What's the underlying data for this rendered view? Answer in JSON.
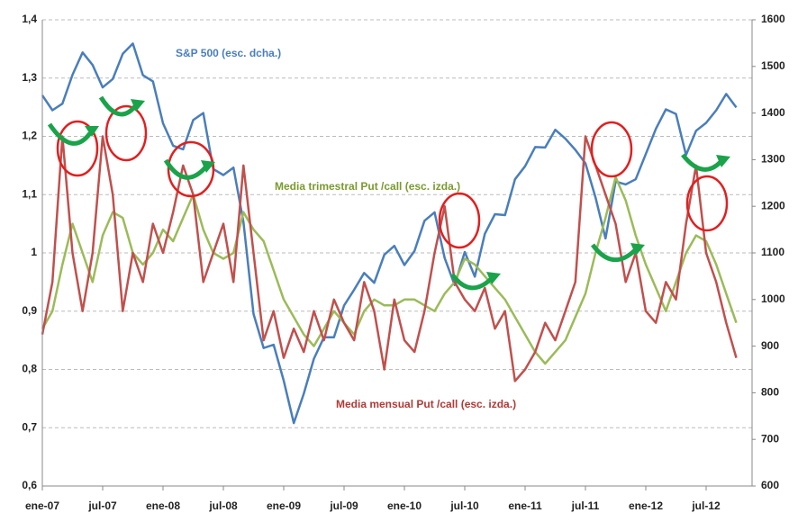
{
  "chart_data": {
    "type": "line",
    "categories": [
      "ene-07",
      null,
      null,
      null,
      null,
      null,
      "jul-07",
      null,
      null,
      null,
      null,
      null,
      "ene-08",
      null,
      null,
      null,
      null,
      null,
      "jul-08",
      null,
      null,
      null,
      null,
      null,
      "ene-09",
      null,
      null,
      null,
      null,
      null,
      "jul-09",
      null,
      null,
      null,
      null,
      null,
      "ene-10",
      null,
      null,
      null,
      null,
      null,
      "jul-10",
      null,
      null,
      null,
      null,
      null,
      "ene-11",
      null,
      null,
      null,
      null,
      null,
      "jul-11",
      null,
      null,
      null,
      null,
      null,
      "ene-12",
      null,
      null,
      null,
      null,
      null,
      "jul-12",
      null,
      null,
      null
    ],
    "series": [
      {
        "name": "S&P 500 (esc. dcha.)",
        "color": "#4a7ebb",
        "axis": "y2",
        "values": [
          1438,
          1406,
          1420,
          1482,
          1530,
          1503,
          1455,
          1473,
          1527,
          1549,
          1481,
          1468,
          1378,
          1330,
          1322,
          1385,
          1400,
          1280,
          1267,
          1283,
          1166,
          969,
          896,
          903,
          826,
          735,
          798,
          873,
          919,
          919,
          987,
          1021,
          1057,
          1036,
          1096,
          1115,
          1074,
          1104,
          1169,
          1187,
          1089,
          1031,
          1102,
          1049,
          1141,
          1183,
          1181,
          1258,
          1286,
          1327,
          1326,
          1364,
          1345,
          1321,
          1292,
          1219,
          1131,
          1253,
          1247,
          1258,
          1312,
          1366,
          1408,
          1398,
          1310,
          1362,
          1379,
          1406,
          1441,
          1412
        ]
      },
      {
        "name": "Media trimestral Put /call (esc. izda.)",
        "color": "#9bbb59",
        "values": [
          0.87,
          0.9,
          0.98,
          1.05,
          1.0,
          0.95,
          1.03,
          1.07,
          1.06,
          1.0,
          0.98,
          1.0,
          1.04,
          1.02,
          1.06,
          1.1,
          1.04,
          1.0,
          0.99,
          1.0,
          1.07,
          1.04,
          1.02,
          0.97,
          0.92,
          0.89,
          0.86,
          0.84,
          0.87,
          0.9,
          0.88,
          0.86,
          0.9,
          0.92,
          0.91,
          0.91,
          0.92,
          0.92,
          0.91,
          0.9,
          0.93,
          0.95,
          0.99,
          0.98,
          0.96,
          0.94,
          0.92,
          0.89,
          0.86,
          0.83,
          0.81,
          0.83,
          0.85,
          0.89,
          0.93,
          1.0,
          1.06,
          1.13,
          1.09,
          1.03,
          0.98,
          0.94,
          0.9,
          0.95,
          1.0,
          1.03,
          1.02,
          0.98,
          0.93,
          0.88
        ]
      },
      {
        "name": "Media mensual Put /call (esc. izda.)",
        "color": "#c0504d",
        "values": [
          0.86,
          0.95,
          1.2,
          1.0,
          0.9,
          1.0,
          1.2,
          1.1,
          0.9,
          1.0,
          0.95,
          1.05,
          1.0,
          1.07,
          1.15,
          1.1,
          0.95,
          1.0,
          1.05,
          0.95,
          1.15,
          1.0,
          0.85,
          0.9,
          0.82,
          0.87,
          0.83,
          0.9,
          0.85,
          0.92,
          0.88,
          0.85,
          0.95,
          0.9,
          0.8,
          0.92,
          0.85,
          0.83,
          0.9,
          1.0,
          1.08,
          0.95,
          0.92,
          0.9,
          0.94,
          0.87,
          0.9,
          0.78,
          0.8,
          0.83,
          0.88,
          0.85,
          0.9,
          0.95,
          1.2,
          1.15,
          1.1,
          1.05,
          0.95,
          1.0,
          0.9,
          0.88,
          0.95,
          0.92,
          1.05,
          1.15,
          1.0,
          0.95,
          0.88,
          0.82
        ]
      }
    ],
    "ylim": [
      0.6,
      1.4
    ],
    "yticks": [
      {
        "value": 0.6,
        "label": "0,6"
      },
      {
        "value": 0.7,
        "label": "0,7"
      },
      {
        "value": 0.8,
        "label": "0,8"
      },
      {
        "value": 0.9,
        "label": "0,9"
      },
      1,
      {
        "value": 1.1,
        "label": "1,1"
      },
      {
        "value": 1.2,
        "label": "1,2"
      },
      {
        "value": 1.3,
        "label": "1,3"
      },
      {
        "value": 1.4,
        "label": "1,4"
      }
    ],
    "y2lim": [
      600,
      1600
    ],
    "y2ticks": [
      600,
      700,
      800,
      900,
      1000,
      1100,
      1200,
      1300,
      1400,
      1500,
      1600
    ],
    "grid": true
  }
}
